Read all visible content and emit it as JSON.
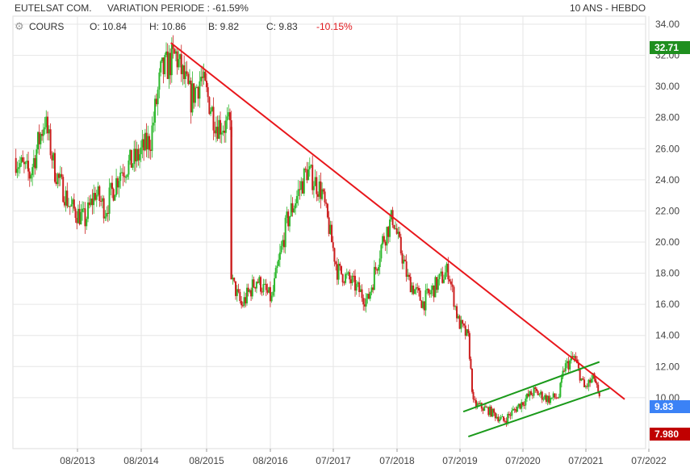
{
  "header": {
    "name": "EUTELSAT COM.",
    "variation": "VARIATION PERIODE : -61.59%",
    "period": "10 ANS - HEBDO",
    "series_label": "COURS",
    "open": "O: 10.84",
    "high": "H: 10.86",
    "low": "B: 9.82",
    "close": "C: 9.83",
    "change": "-10.15%"
  },
  "badges": {
    "top": "32.71",
    "last": "9.83",
    "low": "7.980"
  },
  "colors": {
    "up": "#2db82d",
    "down": "#cc1f1f",
    "trend_down": "#e8161b",
    "channel": "#1a9a1a",
    "badge_top": "#1f8f1f",
    "badge_last": "#3b82f6",
    "badge_low": "#c00000",
    "grid": "#e6e6e6",
    "change": "#e0161b"
  },
  "chart_data": {
    "type": "candlestick",
    "title": "EUTELSAT COM.",
    "ylim": [
      7.2,
      34.0
    ],
    "y_ticks": [
      "34.00",
      "32.00",
      "30.00",
      "28.00",
      "26.00",
      "24.00",
      "22.00",
      "20.00",
      "18.00",
      "16.00",
      "14.00",
      "12.00",
      "10.00"
    ],
    "x_ticks": [
      "08/2013",
      "08/2014",
      "08/2015",
      "08/2016",
      "07/2017",
      "07/2018",
      "07/2019",
      "07/2020",
      "07/2021",
      "07/2022"
    ],
    "grid": true,
    "price_path": [
      [
        "2012-06",
        25.4
      ],
      [
        "2012-09",
        24.3
      ],
      [
        "2012-12",
        27.9
      ],
      [
        "2013-02",
        24.6
      ],
      [
        "2013-05",
        22.3
      ],
      [
        "2013-08",
        21.4
      ],
      [
        "2013-10",
        23.2
      ],
      [
        "2013-12",
        22.1
      ],
      [
        "2014-03",
        24.6
      ],
      [
        "2014-06",
        25.3
      ],
      [
        "2014-09",
        26.6
      ],
      [
        "2014-11",
        30.8
      ],
      [
        "2015-02",
        32.0
      ],
      [
        "2015-05",
        29.2
      ],
      [
        "2015-07",
        30.6
      ],
      [
        "2015-10",
        27.6
      ],
      [
        "2016-01",
        27.4
      ],
      [
        "2016-01",
        17.6
      ],
      [
        "2016-03",
        15.9
      ],
      [
        "2016-06",
        17.6
      ],
      [
        "2016-09",
        16.3
      ],
      [
        "2016-12",
        21.3
      ],
      [
        "2017-04",
        24.6
      ],
      [
        "2017-07",
        23.2
      ],
      [
        "2017-10",
        18.2
      ],
      [
        "2018-01",
        17.4
      ],
      [
        "2018-04",
        16.2
      ],
      [
        "2018-07",
        20.1
      ],
      [
        "2018-09",
        21.6
      ],
      [
        "2018-12",
        17.6
      ],
      [
        "2019-03",
        16.1
      ],
      [
        "2019-06",
        17.4
      ],
      [
        "2019-08",
        18.2
      ],
      [
        "2019-10",
        14.9
      ],
      [
        "2019-12",
        13.8
      ],
      [
        "2020-01",
        9.6
      ],
      [
        "2020-04",
        9.2
      ],
      [
        "2020-07",
        8.5
      ],
      [
        "2020-10",
        9.5
      ],
      [
        "2021-01",
        10.4
      ],
      [
        "2021-04",
        9.9
      ],
      [
        "2021-06",
        10.1
      ],
      [
        "2021-07",
        11.9
      ],
      [
        "2021-09",
        12.6
      ],
      [
        "2021-11",
        10.6
      ],
      [
        "2022-01",
        11.3
      ],
      [
        "2022-02",
        9.83
      ]
    ],
    "trendlines": [
      {
        "name": "resistance",
        "color": "#e8161b",
        "from": [
          "2015-01",
          32.8
        ],
        "to": [
          "2022-07",
          9.9
        ]
      },
      {
        "name": "channel-upper",
        "color": "#1a9a1a",
        "from": [
          "2019-11",
          9.1
        ],
        "to": [
          "2022-02",
          12.3
        ]
      },
      {
        "name": "channel-lower",
        "color": "#1a9a1a",
        "from": [
          "2019-12",
          7.5
        ],
        "to": [
          "2022-04",
          10.6
        ]
      }
    ],
    "last_value": 9.83,
    "low_value": 7.98
  }
}
